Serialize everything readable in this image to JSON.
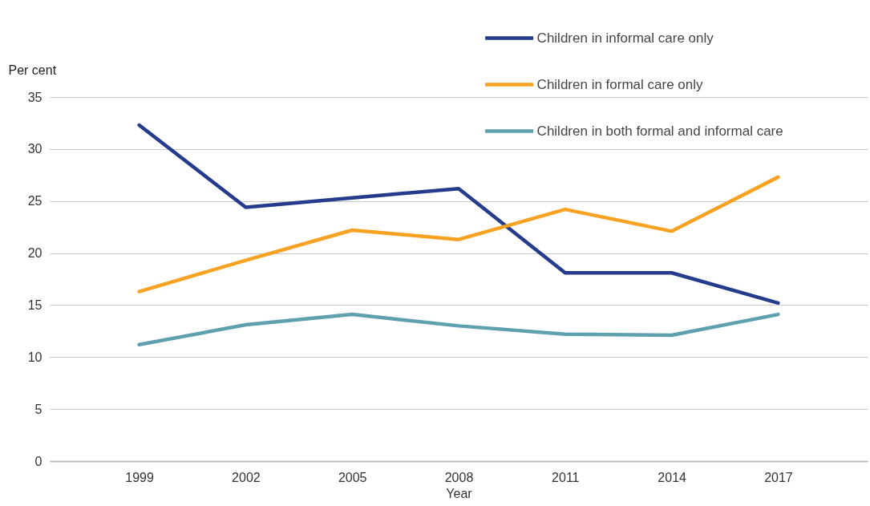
{
  "chart_data": {
    "type": "line",
    "xlabel": "Year",
    "ylabel": "Per cent",
    "categories": [
      "1999",
      "2002",
      "2005",
      "2008",
      "2011",
      "2014",
      "2017"
    ],
    "series": [
      {
        "name": "Children in informal care only",
        "color": "#253b8c",
        "values": [
          32.3,
          24.4,
          25.3,
          26.2,
          18.1,
          18.1,
          15.2
        ]
      },
      {
        "name": "Children in formal care only",
        "color": "#f8a224",
        "values": [
          16.3,
          19.3,
          22.2,
          21.3,
          24.2,
          22.1,
          27.3
        ]
      },
      {
        "name": "Children in both formal and informal care",
        "color": "#5ea0b0",
        "values": [
          11.2,
          13.1,
          14.1,
          13.0,
          12.2,
          12.1,
          14.1
        ]
      }
    ],
    "ylim": [
      0,
      35
    ],
    "yticks": [
      0,
      5,
      10,
      15,
      20,
      25,
      30,
      35
    ],
    "grid": "y",
    "legend": "top right",
    "marker": "none",
    "line_style": "solid"
  }
}
